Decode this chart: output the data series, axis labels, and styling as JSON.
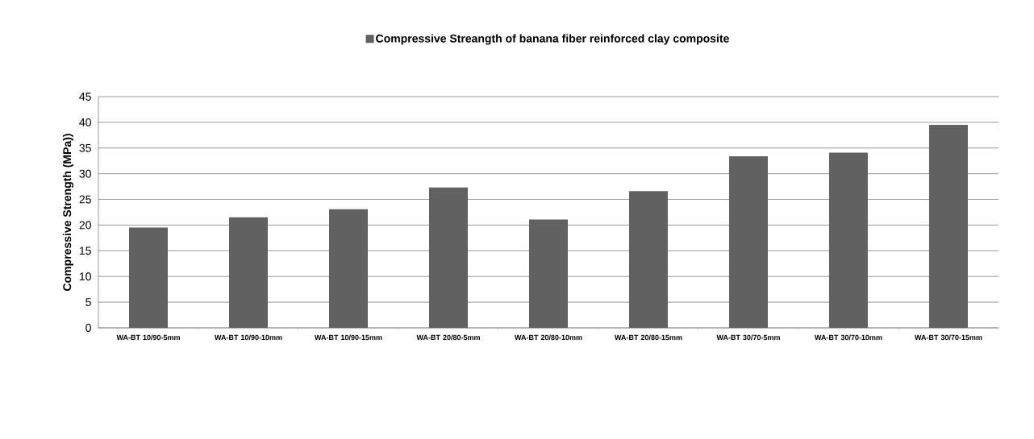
{
  "chart_data": {
    "type": "bar",
    "categories": [
      "WA-BT 10/90-5mm",
      "WA-BT 10/90-10mm",
      "WA-BT 10/90-15mm",
      "WA-BT 20/80-5mm",
      "WA-BT 20/80-10mm",
      "WA-BT 20/80-15mm",
      "WA-BT 30/70-5mm",
      "WA-BT 30/70-10mm",
      "WA-BT 30/70-15mm"
    ],
    "series": [
      {
        "name": "Compressive Streangth of banana fiber reinforced clay composite",
        "color": "#616161",
        "values": [
          19.5,
          21.5,
          23.1,
          27.3,
          21.1,
          26.6,
          33.4,
          34.1,
          39.5
        ]
      }
    ],
    "ylabel": "Compressive Strength (MPa))",
    "ylim": [
      0,
      45
    ],
    "yticks": [
      0,
      5,
      10,
      15,
      20,
      25,
      30,
      35,
      40,
      45
    ],
    "grid": "y",
    "legend": "top"
  }
}
